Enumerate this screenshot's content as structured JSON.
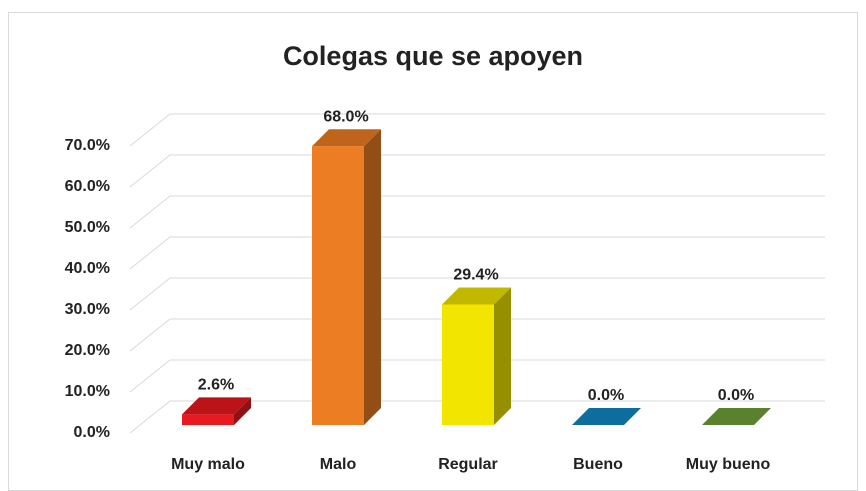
{
  "chart_data": {
    "type": "bar3d",
    "title": "Colegas que se apoyen",
    "categories": [
      "Muy malo",
      "Malo",
      "Regular",
      "Bueno",
      "Muy bueno"
    ],
    "values": [
      2.6,
      68.0,
      29.4,
      0.0,
      0.0
    ],
    "value_labels": [
      "2.6%",
      "68.0%",
      "29.4%",
      "0.0%",
      "0.0%"
    ],
    "colors": [
      "#e8191f",
      "#ed7d22",
      "#f2e600",
      "#1088c4",
      "#6fa13a"
    ],
    "ylim": [
      0,
      70
    ],
    "yticks": [
      {
        "value": 0,
        "label": "0.0%"
      },
      {
        "value": 10,
        "label": "10.0%"
      },
      {
        "value": 20,
        "label": "20.0%"
      },
      {
        "value": 30,
        "label": "30.0%"
      },
      {
        "value": 40,
        "label": "40.0%"
      },
      {
        "value": 50,
        "label": "50.0%"
      },
      {
        "value": 60,
        "label": "60.0%"
      },
      {
        "value": 70,
        "label": "70.0%"
      }
    ],
    "grid": true
  }
}
